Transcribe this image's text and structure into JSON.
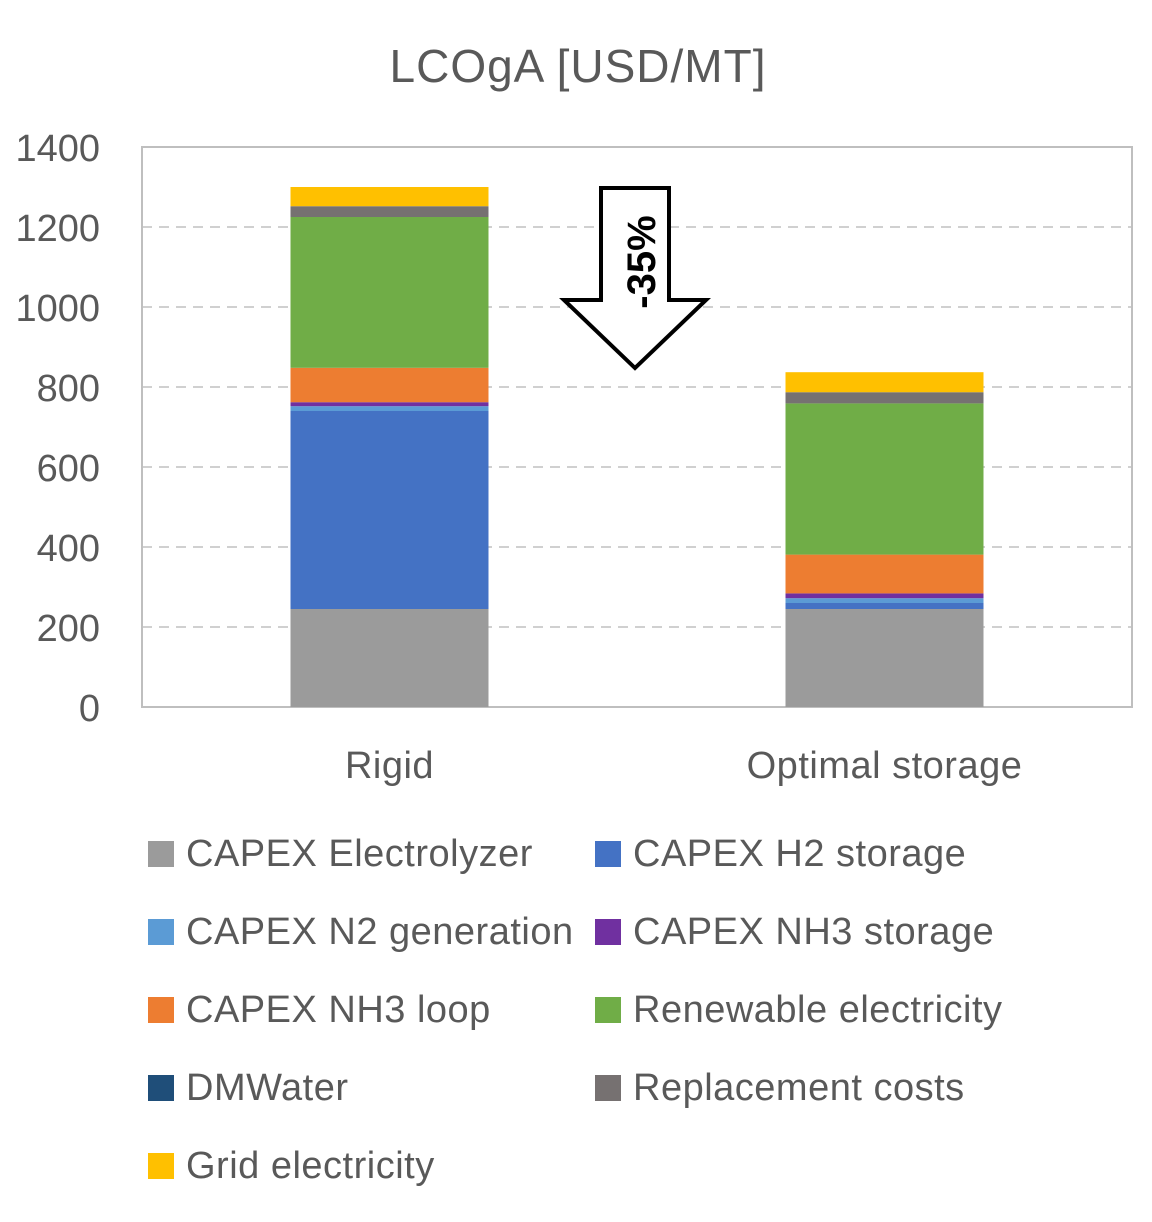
{
  "chart_data": {
    "type": "bar",
    "stacked": true,
    "title": "LCOgA [USD/MT]",
    "xlabel": "",
    "ylabel": "",
    "ylim": [
      0,
      1400
    ],
    "yticks": [
      0,
      200,
      400,
      600,
      800,
      1000,
      1200,
      1400
    ],
    "grid": true,
    "legend_position": "bottom",
    "categories": [
      "Rigid",
      "Optimal storage"
    ],
    "series": [
      {
        "name": "CAPEX Electrolyzer",
        "color": "#9B9B9B",
        "values": [
          245,
          245
        ]
      },
      {
        "name": "CAPEX H2 storage",
        "color": "#4472C4",
        "values": [
          495,
          15
        ]
      },
      {
        "name": "CAPEX N2 generation",
        "color": "#5B9BD5",
        "values": [
          12,
          12
        ]
      },
      {
        "name": "CAPEX NH3 storage",
        "color": "#7030A0",
        "values": [
          10,
          12
        ]
      },
      {
        "name": "CAPEX NH3 loop",
        "color": "#ED7D31",
        "values": [
          86,
          97
        ]
      },
      {
        "name": "Renewable electricity",
        "color": "#70AD47",
        "values": [
          377,
          378
        ]
      },
      {
        "name": "DMWater",
        "color": "#1F4E79",
        "values": [
          0,
          0
        ]
      },
      {
        "name": "Replacement costs",
        "color": "#767171",
        "values": [
          27,
          28
        ]
      },
      {
        "name": "Grid electricity",
        "color": "#FFC000",
        "values": [
          48,
          50
        ]
      }
    ],
    "annotation": {
      "text": "-35%",
      "description": "downward arrow between bars"
    }
  }
}
